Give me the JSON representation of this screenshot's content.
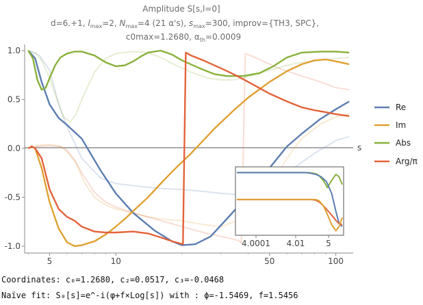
{
  "chart_data": {
    "type": "line",
    "title_lines": [
      "Amplitude S[s,l=0]",
      "d=6.+1, lmax=2, Nmax=4 (21 α's), smax=300, improv={TH3, SPC},",
      "c0max=1.2680, αth=0.0009"
    ],
    "xlabel": "s",
    "ylabel": "",
    "x_scale": "log",
    "xlim": [
      3.85,
      120
    ],
    "ylim": [
      -1.05,
      1.05
    ],
    "x_ticks": [
      5,
      10,
      50,
      100
    ],
    "y_ticks": [
      1.0,
      0.5,
      0.0,
      -0.5,
      -1.0
    ],
    "y_tick_labels": [
      "1.0",
      "0.5",
      "0.0",
      "-0.5",
      "-1.0"
    ],
    "legend_position": "right",
    "series": [
      {
        "name": "Re",
        "color": "#5b7db1",
        "x": [
          4.0,
          4.3,
          4.6,
          5.0,
          5.5,
          6.0,
          7.0,
          8.5,
          10,
          12,
          15,
          18,
          20,
          23,
          27,
          32,
          40,
          50,
          60,
          70,
          85,
          100,
          115
        ],
        "y": [
          1.0,
          0.92,
          0.68,
          0.45,
          0.31,
          0.24,
          0.1,
          -0.22,
          -0.46,
          -0.66,
          -0.84,
          -0.95,
          -0.99,
          -0.98,
          -0.9,
          -0.72,
          -0.48,
          -0.2,
          0.02,
          0.15,
          0.3,
          0.4,
          0.48
        ]
      },
      {
        "name": "Im",
        "color": "#e0a030",
        "x": [
          4.0,
          4.15,
          4.3,
          4.6,
          5.0,
          5.5,
          6.0,
          6.5,
          7.0,
          8.0,
          9.0,
          10,
          11,
          12,
          14,
          16,
          18,
          20,
          22,
          24,
          28,
          34,
          40,
          50,
          60,
          70,
          80,
          90,
          100,
          115
        ],
        "y": [
          0.0,
          0.02,
          0.0,
          -0.2,
          -0.55,
          -0.82,
          -0.96,
          -1.0,
          -0.99,
          -0.95,
          -0.88,
          -0.8,
          -0.72,
          -0.64,
          -0.5,
          -0.36,
          -0.24,
          -0.14,
          -0.05,
          0.04,
          0.2,
          0.38,
          0.52,
          0.68,
          0.79,
          0.86,
          0.9,
          0.91,
          0.89,
          0.86
        ]
      },
      {
        "name": "Abs",
        "color": "#88b13a",
        "x": [
          4.0,
          4.2,
          4.4,
          4.6,
          4.8,
          5.0,
          5.3,
          5.6,
          6.0,
          6.5,
          7.0,
          8.0,
          9.0,
          10,
          11,
          12,
          13,
          14,
          16,
          18,
          20,
          24,
          28,
          32,
          38,
          45,
          52,
          60,
          70,
          85,
          100,
          115
        ],
        "y": [
          1.0,
          0.92,
          0.7,
          0.6,
          0.62,
          0.72,
          0.85,
          0.93,
          0.97,
          0.99,
          0.99,
          0.95,
          0.88,
          0.84,
          0.85,
          0.89,
          0.94,
          0.98,
          1.0,
          0.96,
          0.9,
          0.82,
          0.76,
          0.74,
          0.74,
          0.77,
          0.84,
          0.93,
          0.98,
          0.99,
          0.99,
          0.98
        ]
      },
      {
        "name": "Arg/π",
        "color": "#e3623a",
        "x": [
          4.0,
          4.15,
          4.3,
          4.6,
          5.0,
          5.5,
          6.0,
          6.5,
          7.0,
          8.0,
          9.0,
          10,
          12,
          14,
          16,
          18,
          20.2,
          20.8,
          22,
          25,
          30,
          35,
          40,
          50,
          60,
          70,
          80,
          90,
          100,
          115
        ],
        "y": [
          0.0,
          0.02,
          0.0,
          -0.1,
          -0.42,
          -0.62,
          -0.7,
          -0.74,
          -0.8,
          -0.85,
          -0.86,
          -0.86,
          -0.85,
          -0.87,
          -0.91,
          -0.95,
          -0.98,
          0.98,
          0.95,
          0.9,
          0.82,
          0.75,
          0.68,
          0.56,
          0.48,
          0.42,
          0.39,
          0.37,
          0.35,
          0.33
        ]
      }
    ],
    "ghost_series": [
      {
        "name": "Re-faded",
        "color": "#5b7db1",
        "x": [
          4.0,
          4.5,
          5.0,
          5.5,
          6.0,
          7.0,
          8.5,
          10,
          13,
          16,
          20,
          25,
          30,
          40,
          50,
          60,
          80,
          100,
          115
        ],
        "y": [
          1.0,
          0.95,
          0.8,
          0.45,
          0.22,
          -0.1,
          -0.3,
          -0.36,
          -0.39,
          -0.41,
          -0.42,
          -0.44,
          -0.46,
          -0.48,
          -0.38,
          -0.25,
          -0.05,
          0.08,
          0.12
        ]
      },
      {
        "name": "Im-faded",
        "color": "#e0a030",
        "x": [
          4.0,
          4.4,
          5.0,
          5.6,
          6.0,
          6.6,
          7.2,
          8.0,
          9.0,
          10,
          12,
          14,
          16,
          20,
          25,
          30,
          40,
          50,
          60,
          70,
          85,
          100,
          115
        ],
        "y": [
          0.0,
          0.03,
          0.04,
          0.02,
          -0.03,
          -0.15,
          -0.35,
          -0.5,
          -0.58,
          -0.62,
          -0.66,
          -0.7,
          -0.72,
          -0.74,
          -0.78,
          -0.8,
          -0.7,
          -0.4,
          -0.1,
          0.1,
          0.25,
          0.32,
          0.35
        ]
      },
      {
        "name": "Abs-faded",
        "color": "#88b13a",
        "x": [
          4.0,
          4.3,
          4.6,
          5.0,
          5.4,
          5.8,
          6.2,
          6.6,
          7.0,
          8.0,
          9.0,
          10,
          12,
          14,
          16,
          18,
          20,
          22,
          24,
          26,
          30,
          34,
          38,
          44,
          50,
          60,
          70,
          85,
          100,
          115
        ],
        "y": [
          1.0,
          0.98,
          0.9,
          0.72,
          0.5,
          0.32,
          0.27,
          0.35,
          0.5,
          0.78,
          0.92,
          0.97,
          0.99,
          0.98,
          0.93,
          0.87,
          0.82,
          0.78,
          0.75,
          0.72,
          0.7,
          0.7,
          0.72,
          0.76,
          0.8,
          0.85,
          0.88,
          0.9,
          0.92,
          0.93
        ]
      },
      {
        "name": "Arg-faded",
        "color": "#e3623a",
        "x": [
          4.0,
          4.4,
          5.0,
          5.6,
          6.0,
          6.5,
          7.0,
          8.0,
          9.0,
          10,
          12,
          15,
          20,
          25,
          30,
          36,
          37.2,
          38.8,
          42,
          48,
          55,
          62,
          70,
          80,
          90,
          100,
          115
        ],
        "y": [
          0.0,
          0.02,
          0.03,
          0.02,
          -0.02,
          -0.12,
          -0.25,
          -0.45,
          -0.55,
          -0.6,
          -0.66,
          -0.72,
          -0.8,
          -0.86,
          -0.9,
          -0.94,
          -0.97,
          0.97,
          0.94,
          0.88,
          0.82,
          0.78,
          0.74,
          0.7,
          0.66,
          0.62,
          0.6
        ]
      }
    ],
    "inset": {
      "x_ticks": [
        "4.0001",
        "4.01",
        "5"
      ],
      "series": [
        {
          "name": "Abs-inset",
          "color": "#88b13a",
          "x": [
            0,
            0.1,
            0.2,
            0.3,
            0.4,
            0.5,
            0.6,
            0.65,
            0.7,
            0.75,
            0.78,
            0.82,
            0.86,
            0.9,
            0.94,
            0.97,
            1.0
          ],
          "y": [
            0.95,
            0.95,
            0.95,
            0.95,
            0.95,
            0.95,
            0.95,
            0.95,
            0.945,
            0.93,
            0.9,
            0.82,
            0.7,
            0.82,
            0.92,
            0.88,
            0.75
          ]
        },
        {
          "name": "Re-inset",
          "color": "#5b7db1",
          "x": [
            0,
            0.2,
            0.4,
            0.5,
            0.6,
            0.65,
            0.7,
            0.75,
            0.8,
            0.85,
            0.9,
            0.94,
            0.97,
            1.0
          ],
          "y": [
            0.95,
            0.95,
            0.95,
            0.95,
            0.95,
            0.95,
            0.94,
            0.92,
            0.88,
            0.8,
            0.6,
            0.3,
            0.1,
            0.05
          ]
        },
        {
          "name": "Arg-inset",
          "color": "#e3623a",
          "x": [
            0,
            0.2,
            0.4,
            0.5,
            0.6,
            0.65,
            0.7,
            0.75,
            0.78,
            0.82,
            0.86,
            0.9,
            0.94,
            0.97,
            1.0
          ],
          "y": [
            0.5,
            0.5,
            0.5,
            0.5,
            0.5,
            0.5,
            0.5,
            0.49,
            0.46,
            0.4,
            0.32,
            0.24,
            0.15,
            0.1,
            0.08
          ]
        },
        {
          "name": "Im-inset",
          "color": "#e0a030",
          "x": [
            0,
            0.2,
            0.4,
            0.5,
            0.6,
            0.65,
            0.7,
            0.75,
            0.78,
            0.82,
            0.86,
            0.9,
            0.94,
            0.97,
            1.0
          ],
          "y": [
            0.5,
            0.5,
            0.5,
            0.5,
            0.5,
            0.5,
            0.5,
            0.5,
            0.48,
            0.4,
            0.25,
            0.08,
            -0.02,
            0.05,
            0.2
          ]
        }
      ]
    }
  },
  "footer": {
    "coords_prefix": "Coordinates: ",
    "coords": "c₀=1.2680, c₂=0.0517, c₃=-0.0468",
    "fit_prefix": "Naïve fit: ",
    "fit_formula": "S₀[s]=e^-i(φ+f×Log[s])",
    "fit_suffix": " with : ϕ=-1.5469, f=1.5456"
  }
}
